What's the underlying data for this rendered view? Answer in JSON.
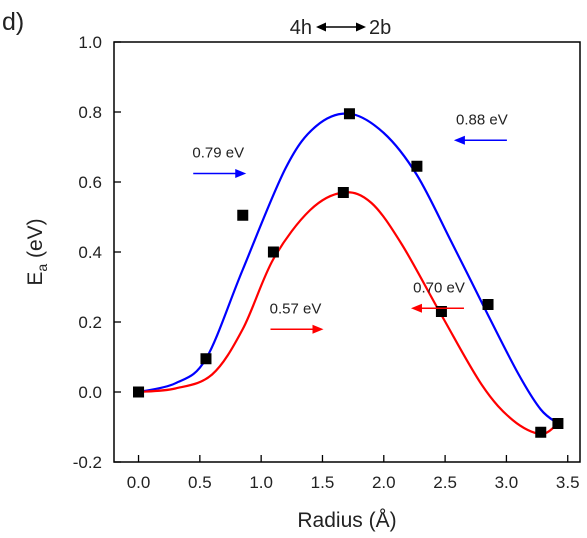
{
  "chart_data": {
    "panel_label": "d)",
    "type": "line",
    "title": "4h↔ 2b",
    "title_parts": [
      "4h",
      "2b"
    ],
    "xlabel": "Radius (Å)",
    "ylabel_main": "E",
    "ylabel_sub": "a",
    "ylabel_unit": " (eV)",
    "xlim": [
      -0.2,
      3.6
    ],
    "ylim": [
      -0.2,
      1.0
    ],
    "xticks": [
      0.0,
      0.5,
      1.0,
      1.5,
      2.0,
      2.5,
      3.0,
      3.5
    ],
    "xtick_labels": [
      "0.0",
      "0.5",
      "1.0",
      "1.5",
      "2.0",
      "2.5",
      "3.0",
      "3.5"
    ],
    "yticks": [
      -0.2,
      0.0,
      0.2,
      0.4,
      0.6,
      0.8,
      1.0
    ],
    "ytick_labels": [
      "-0.2",
      "0.0",
      "0.2",
      "0.4",
      "0.6",
      "0.8",
      "1.0"
    ],
    "grid": false,
    "series": [
      {
        "color": "#0000ff",
        "curve_x": [
          0.0,
          0.3,
          0.55,
          0.85,
          1.2,
          1.45,
          1.72,
          2.0,
          2.27,
          2.55,
          2.85,
          3.1,
          3.28,
          3.42
        ],
        "curve_y": [
          0.0,
          0.025,
          0.095,
          0.35,
          0.64,
          0.76,
          0.795,
          0.74,
          0.62,
          0.43,
          0.22,
          0.05,
          -0.05,
          -0.09
        ],
        "points_x": [
          0.0,
          0.55,
          0.85,
          1.72,
          2.27,
          2.85,
          3.42
        ],
        "points_y": [
          0.0,
          0.095,
          0.505,
          0.795,
          0.645,
          0.25,
          -0.09
        ]
      },
      {
        "color": "#ff0000",
        "curve_x": [
          0.0,
          0.3,
          0.6,
          0.85,
          1.1,
          1.4,
          1.67,
          1.9,
          2.15,
          2.47,
          2.8,
          3.05,
          3.28,
          3.42
        ],
        "curve_y": [
          0.0,
          0.01,
          0.05,
          0.18,
          0.38,
          0.52,
          0.57,
          0.54,
          0.42,
          0.22,
          0.02,
          -0.08,
          -0.12,
          -0.09
        ],
        "points_x": [
          0.0,
          1.1,
          1.67,
          2.47,
          3.28
        ],
        "points_y": [
          0.0,
          0.4,
          0.57,
          0.23,
          -0.115
        ]
      }
    ],
    "annotations": [
      {
        "text": "0.79 eV",
        "color": "#0000ff",
        "arrow_direction": "right",
        "x": 0.65,
        "y": 0.67
      },
      {
        "text": "0.88 eV",
        "color": "#0000ff",
        "arrow_direction": "left",
        "x": 2.8,
        "y": 0.765
      },
      {
        "text": "0.57 eV",
        "color": "#ff0000",
        "arrow_direction": "right",
        "x": 1.28,
        "y": 0.225
      },
      {
        "text": "0.70 eV",
        "color": "#ff0000",
        "arrow_direction": "left",
        "x": 2.45,
        "y": 0.285
      }
    ]
  }
}
